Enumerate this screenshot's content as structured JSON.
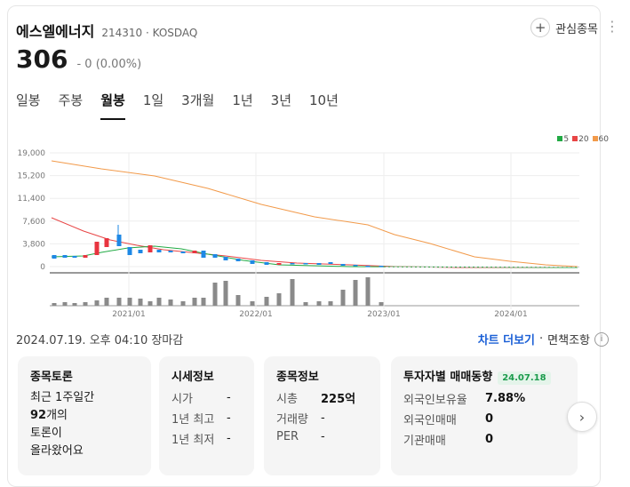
{
  "stock": {
    "name": "에스엘에너지",
    "code": "214310",
    "market_sep": "·",
    "market": "KOSDAQ",
    "price": "306",
    "change": "0 (0.00%)",
    "change_marker": "-"
  },
  "actions": {
    "add_label": "관심종목",
    "plus_icon": "plus-icon",
    "more_icon": "more-icon"
  },
  "tabs": [
    {
      "label": "일봉"
    },
    {
      "label": "주봉"
    },
    {
      "label": "월봉",
      "active": true
    },
    {
      "label": "1일"
    },
    {
      "label": "3개월"
    },
    {
      "label": "1년"
    },
    {
      "label": "3년"
    },
    {
      "label": "10년"
    }
  ],
  "chart_data": {
    "type": "candlestick",
    "y_ticks": [
      "19,000",
      "15,200",
      "11,400",
      "7,600",
      "3,800",
      "0"
    ],
    "x_ticks": [
      "2021/01",
      "2022/01",
      "2023/01",
      "2024/01"
    ],
    "legend": [
      {
        "label": "5",
        "color": "#22aa44"
      },
      {
        "label": "20",
        "color": "#e84545"
      },
      {
        "label": "60",
        "color": "#f29a4a"
      }
    ],
    "colors": {
      "up": "#e8343f",
      "down": "#1e88e5"
    }
  },
  "footer": {
    "timestamp": "2024.07.19. 오후 04:10 장마감",
    "chart_link": "차트 더보기",
    "sep": "·",
    "disclaimer": "면책조항",
    "info_icon": "i"
  },
  "panels": {
    "discussion": {
      "title": "종목토론",
      "line1": "최근 1주일간",
      "count": "92",
      "count_suffix": "개의",
      "line3": "토론이",
      "line4": "올라왔어요"
    },
    "quote": {
      "title": "시세정보",
      "rows": [
        {
          "label": "시가",
          "value": "-"
        },
        {
          "label": "1년 최고",
          "value": "-"
        },
        {
          "label": "1년 최저",
          "value": "-"
        }
      ]
    },
    "stockinfo": {
      "title": "종목정보",
      "rows": [
        {
          "label": "시총",
          "value": "225억"
        },
        {
          "label": "거래량",
          "value": "-"
        },
        {
          "label": "PER",
          "value": "-"
        }
      ]
    },
    "investor": {
      "title": "투자자별 매매동향",
      "date": "24.07.18",
      "rows": [
        {
          "label": "외국인보유율",
          "value": "7.88%"
        },
        {
          "label": "외국인매매",
          "value": "0"
        },
        {
          "label": "기관매매",
          "value": "0"
        }
      ]
    }
  },
  "next_icon": "chevron-right-icon"
}
